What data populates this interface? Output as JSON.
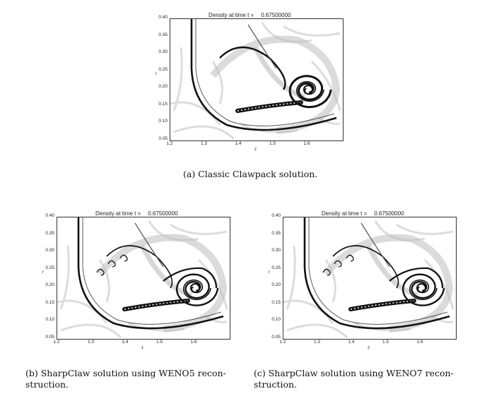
{
  "plot_title_prefix": "Density at time t =",
  "plot_time": "0.67500000",
  "y_ticks": [
    "0.40",
    "0.35",
    "0.30",
    "0.25",
    "0.20",
    "0.15",
    "0.10",
    "0.05"
  ],
  "x_ticks": [
    "1.2",
    "1.3",
    "1.4",
    "1.5",
    "1.6"
  ],
  "xlabel": "z",
  "ylabel": "r",
  "captions": {
    "a": "(a) Classic Clawpack solution.",
    "b_line1": "(b) SharpClaw solution using WENO5 recon-",
    "b_line2": "struction.",
    "c_line1": "(c) SharpClaw solution using WENO7 recon-",
    "c_line2": "struction."
  },
  "colors": {
    "ink": "#111111",
    "shade": "#bdbdbd",
    "light": "#dcdcdc"
  }
}
